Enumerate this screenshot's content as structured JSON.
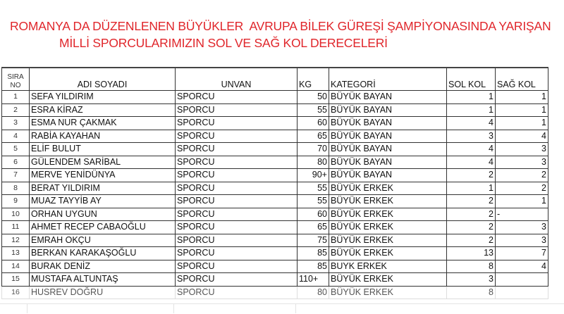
{
  "title": {
    "line1": "ROMANYA DA DÜZENLENEN BÜYÜKLER  AVRUPA BİLEK GÜREŞİ ŞAMPİYONASINDA YARIŞAN",
    "line2": "MİLLİ SPORCULARIMIZIN SOL VE SAĞ KOL DERECELERİ",
    "color": "#e0262b"
  },
  "table": {
    "headers": {
      "no_line1": "SIRA",
      "no_line2": "NO",
      "name": "ADI SOYADI",
      "unvan": "UNVAN",
      "kg": "KG",
      "kategori": "KATEGORİ",
      "sol": "SOL KOL",
      "sag": "SAĞ KOL"
    },
    "rows": [
      {
        "no": "1",
        "name": "SEFA YILDIRIM",
        "unvan": "SPORCU",
        "kg": "50",
        "kategori": "BÜYÜK BAYAN",
        "sol": "1",
        "sag": "1"
      },
      {
        "no": "2",
        "name": "ESRA KİRAZ",
        "unvan": "SPORCU",
        "kg": "55",
        "kategori": "BÜYÜK BAYAN",
        "sol": "1",
        "sag": "1"
      },
      {
        "no": "3",
        "name": "ESMA NUR ÇAKMAK",
        "unvan": "SPORCU",
        "kg": "60",
        "kategori": "BÜYÜK BAYAN",
        "sol": "4",
        "sag": "1"
      },
      {
        "no": "4",
        "name": "RABİA KAYAHAN",
        "unvan": "SPORCU",
        "kg": "65",
        "kategori": "BÜYÜK BAYAN",
        "sol": "3",
        "sag": "4"
      },
      {
        "no": "5",
        "name": "ELİF BULUT",
        "unvan": "SPORCU",
        "kg": "70",
        "kategori": "BÜYÜK BAYAN",
        "sol": "4",
        "sag": "3"
      },
      {
        "no": "6",
        "name": "GÜLENDEM SARİBAL",
        "unvan": "SPORCU",
        "kg": "80",
        "kategori": "BÜYÜK BAYAN",
        "sol": "4",
        "sag": "3"
      },
      {
        "no": "7",
        "name": "MERVE YENİDÜNYA",
        "unvan": "SPORCU",
        "kg": "90+",
        "kategori": "BÜYÜK BAYAN",
        "sol": "2",
        "sag": "2"
      },
      {
        "no": "8",
        "name": "BERAT YILDIRIM",
        "unvan": "SPORCU",
        "kg": "55",
        "kategori": "BÜYÜK ERKEK",
        "sol": "1",
        "sag": "2"
      },
      {
        "no": "9",
        "name": "MUAZ TAYYİB AY",
        "unvan": "SPORCU",
        "kg": "55",
        "kategori": "BÜYÜK ERKEK",
        "sol": "2",
        "sag": "1"
      },
      {
        "no": "10",
        "name": "ORHAN UYGUN",
        "unvan": "SPORCU",
        "kg": "60",
        "kategori": "BÜYÜK ERKEK",
        "sol": "2",
        "sag": "-"
      },
      {
        "no": "11",
        "name": "AHMET RECEP CABAOĞLU",
        "unvan": "SPORCU",
        "kg": "65",
        "kategori": "BÜYÜK ERKEK",
        "sol": "2",
        "sag": "3"
      },
      {
        "no": "12",
        "name": "EMRAH OKÇU",
        "unvan": "SPORCU",
        "kg": "75",
        "kategori": "BÜYÜK ERKEK",
        "sol": "2",
        "sag": "3"
      },
      {
        "no": "13",
        "name": "BERKAN KARAKAŞOĞLU",
        "unvan": "SPORCU",
        "kg": "85",
        "kategori": "BÜYÜK ERKEK",
        "sol": "13",
        "sag": "7"
      },
      {
        "no": "14",
        "name": "BURAK DENİZ",
        "unvan": "SPORCU",
        "kg": "85",
        "kategori": "BUYK ERKEK",
        "sol": "8",
        "sag": "4"
      },
      {
        "no": "15",
        "name": "MUSTAFA ALTUNTAŞ",
        "unvan": "SPORCU",
        "kg": "110+",
        "kategori": "BÜYÜK ERKEK",
        "sol": "3",
        "sag": ""
      },
      {
        "no": "16",
        "name": "HUSREV  DOĞRU",
        "unvan": "SPORCU",
        "kg": "80",
        "kategori": "BÜYÜK ERKEK",
        "sol": "8",
        "sag": ""
      }
    ]
  }
}
